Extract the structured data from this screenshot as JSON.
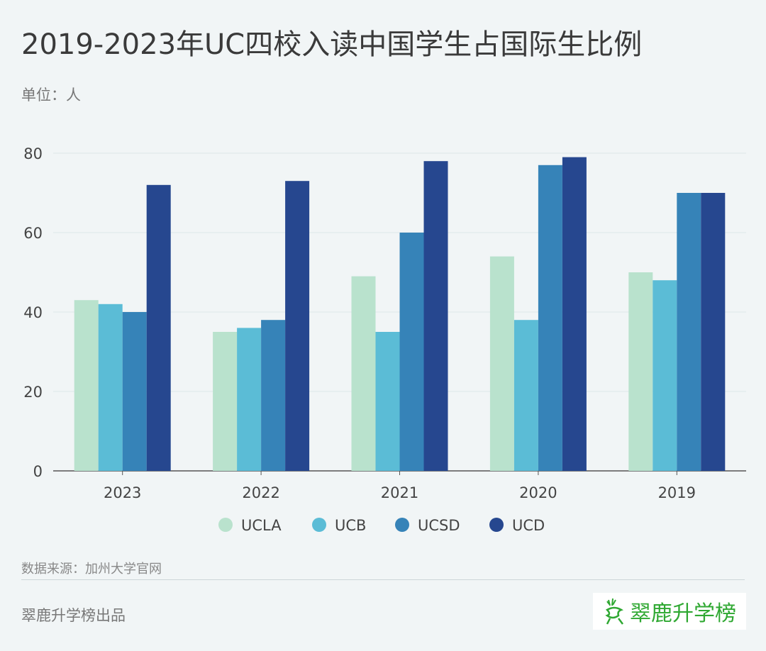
{
  "title": "2019-2023年UC四校入读中国学生占国际生比例",
  "unit": "单位：人",
  "source": "数据来源：加州大学官网",
  "producer": "翠鹿升学榜出品",
  "logo_text": "翠鹿升学榜",
  "chart_data": {
    "type": "bar",
    "title": "2019-2023年UC四校入读中国学生占国际生比例",
    "xlabel": "",
    "ylabel": "单位：人",
    "ylim": [
      0,
      80
    ],
    "yticks": [
      "0",
      "20",
      "40",
      "60",
      "80"
    ],
    "grid": true,
    "legend_position": "bottom",
    "categories": [
      "2023",
      "2022",
      "2021",
      "2020",
      "2019"
    ],
    "series": [
      {
        "name": "UCLA",
        "color": "#b9e2cd",
        "values": [
          43,
          35,
          49,
          54,
          50
        ]
      },
      {
        "name": "UCB",
        "color": "#5bbcd6",
        "values": [
          42,
          36,
          35,
          38,
          48
        ]
      },
      {
        "name": "UCSD",
        "color": "#3683b8",
        "values": [
          40,
          38,
          60,
          77,
          70
        ]
      },
      {
        "name": "UCD",
        "color": "#26478f",
        "values": [
          72,
          73,
          78,
          79,
          70
        ]
      }
    ]
  }
}
